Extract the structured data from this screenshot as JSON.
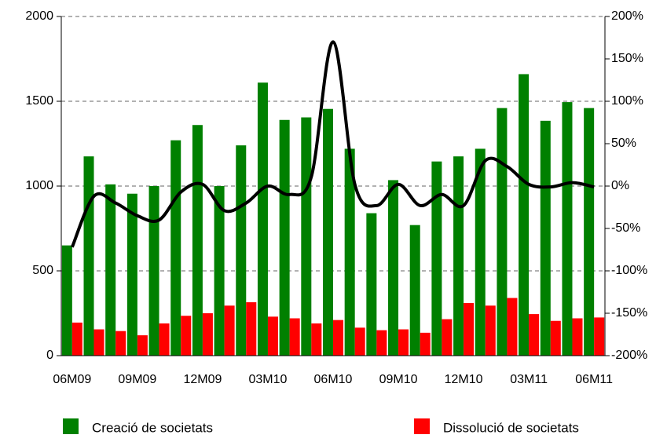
{
  "chart_data": {
    "type": "bar",
    "categories": [
      "06M09",
      null,
      null,
      "09M09",
      null,
      null,
      "12M09",
      null,
      null,
      "03M10",
      null,
      null,
      "06M10",
      null,
      null,
      "09M10",
      null,
      null,
      "12M10",
      null,
      null,
      "03M11",
      null,
      null,
      "06M11"
    ],
    "series": [
      {
        "name": "Creació de societats",
        "color": "#008000",
        "values": [
          650,
          1175,
          1010,
          955,
          1000,
          1270,
          1360,
          1000,
          1240,
          1610,
          1390,
          1405,
          1455,
          1220,
          840,
          1035,
          770,
          1145,
          1175,
          1220,
          1460,
          1660,
          1385,
          1495,
          1460
        ]
      },
      {
        "name": "Dissolució de societats",
        "color": "#ff0000",
        "values": [
          195,
          155,
          145,
          120,
          190,
          235,
          250,
          295,
          315,
          230,
          220,
          190,
          210,
          165,
          150,
          155,
          135,
          215,
          310,
          295,
          340,
          245,
          205,
          220,
          225
        ]
      },
      {
        "type": "line",
        "axis": "y2",
        "color": "#000000",
        "values": [
          -72,
          -12,
          -20,
          -35,
          -40,
          -7,
          2,
          -29,
          -20,
          0,
          -10,
          11,
          170,
          2,
          -23,
          2,
          -23,
          -10,
          -23,
          30,
          23,
          2,
          -1,
          4,
          -1
        ]
      }
    ],
    "ylim": [
      0,
      2000
    ],
    "yticks": [
      0,
      500,
      1000,
      1500,
      2000
    ],
    "y2lim": [
      -200,
      200
    ],
    "y2ticks": [
      {
        "value": -200,
        "label": "-200%"
      },
      {
        "value": -150,
        "label": "-150%"
      },
      {
        "value": -100,
        "label": "-100%"
      },
      {
        "value": -50,
        "label": "-50%"
      },
      {
        "value": 0,
        "label": "0%"
      },
      {
        "value": 50,
        "label": "50%"
      },
      {
        "value": 100,
        "label": "100%"
      },
      {
        "value": 150,
        "label": "150%"
      },
      {
        "value": 200,
        "label": "200%"
      }
    ],
    "grid": true
  }
}
